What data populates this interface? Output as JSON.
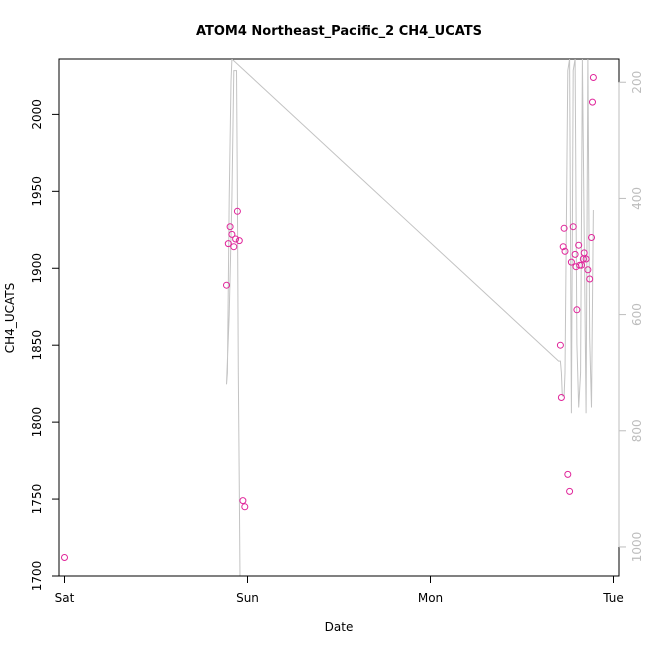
{
  "chart_data": {
    "type": "scatter",
    "title": "ATOM4 Northeast_Pacific_2 CH4_UCATS",
    "xlabel": "Date",
    "ylabel": "CH4_UCATS",
    "x_ticks": [
      {
        "label": "Sat",
        "value": 0
      },
      {
        "label": "Sun",
        "value": 1
      },
      {
        "label": "Mon",
        "value": 2
      },
      {
        "label": "Tue",
        "value": 3
      }
    ],
    "x_unit": "days from Sat 00:00",
    "xlim": [
      -0.03,
      3.03
    ],
    "ylim": [
      1700,
      2036
    ],
    "y_ticks": [
      1700,
      1750,
      1800,
      1850,
      1900,
      1950,
      2000
    ],
    "y2_label": "",
    "y2lim": [
      1050,
      160
    ],
    "y2_ticks": [
      200,
      400,
      600,
      800,
      1000
    ],
    "point_color": "#e0259a",
    "line_color": "#c3c3c3",
    "axis_color_right": "#bdbdbd",
    "series": [
      {
        "kind": "points",
        "x": [
          0.0,
          0.885,
          0.895,
          0.905,
          0.915,
          0.925,
          0.935,
          0.945,
          0.955,
          0.975,
          0.985,
          2.71,
          2.715,
          2.725,
          2.73,
          2.735,
          2.75,
          2.76,
          2.77,
          2.78,
          2.79,
          2.795,
          2.8,
          2.81,
          2.815,
          2.825,
          2.835,
          2.84,
          2.85,
          2.86,
          2.87,
          2.88,
          2.885,
          2.89
        ],
        "y": [
          1712,
          1889,
          1916,
          1927,
          1922,
          1914,
          1919,
          1937,
          1918,
          1749,
          1745,
          1850,
          1816,
          1914,
          1926,
          1911,
          1766,
          1755,
          1904,
          1927,
          1909,
          1901,
          1873,
          1915,
          1902,
          1902,
          1906,
          1910,
          1906,
          1899,
          1893,
          1920,
          2008,
          2024
        ]
      },
      {
        "kind": "line",
        "name": "",
        "x": [
          0.0,
          1.0,
          0.98,
          0.96,
          0.955,
          0.95,
          0.945,
          0.94,
          0.925,
          0.915,
          0.9,
          0.885,
          0.89,
          0.9,
          0.91,
          0.915,
          2.7,
          2.71,
          2.715,
          2.72,
          2.73,
          2.735,
          2.75,
          2.76,
          2.77,
          2.78,
          2.79,
          2.8,
          2.81,
          2.82,
          2.83,
          2.85,
          2.86,
          2.87,
          2.88,
          2.89
        ],
        "y": [
          1150,
          1150,
          1150,
          1100,
          900,
          700,
          400,
          180,
          180,
          400,
          600,
          720,
          700,
          400,
          200,
          160,
          680,
          680,
          700,
          740,
          740,
          700,
          180,
          160,
          770,
          180,
          160,
          650,
          760,
          700,
          160,
          770,
          160,
          640,
          760,
          420
        ]
      }
    ]
  }
}
